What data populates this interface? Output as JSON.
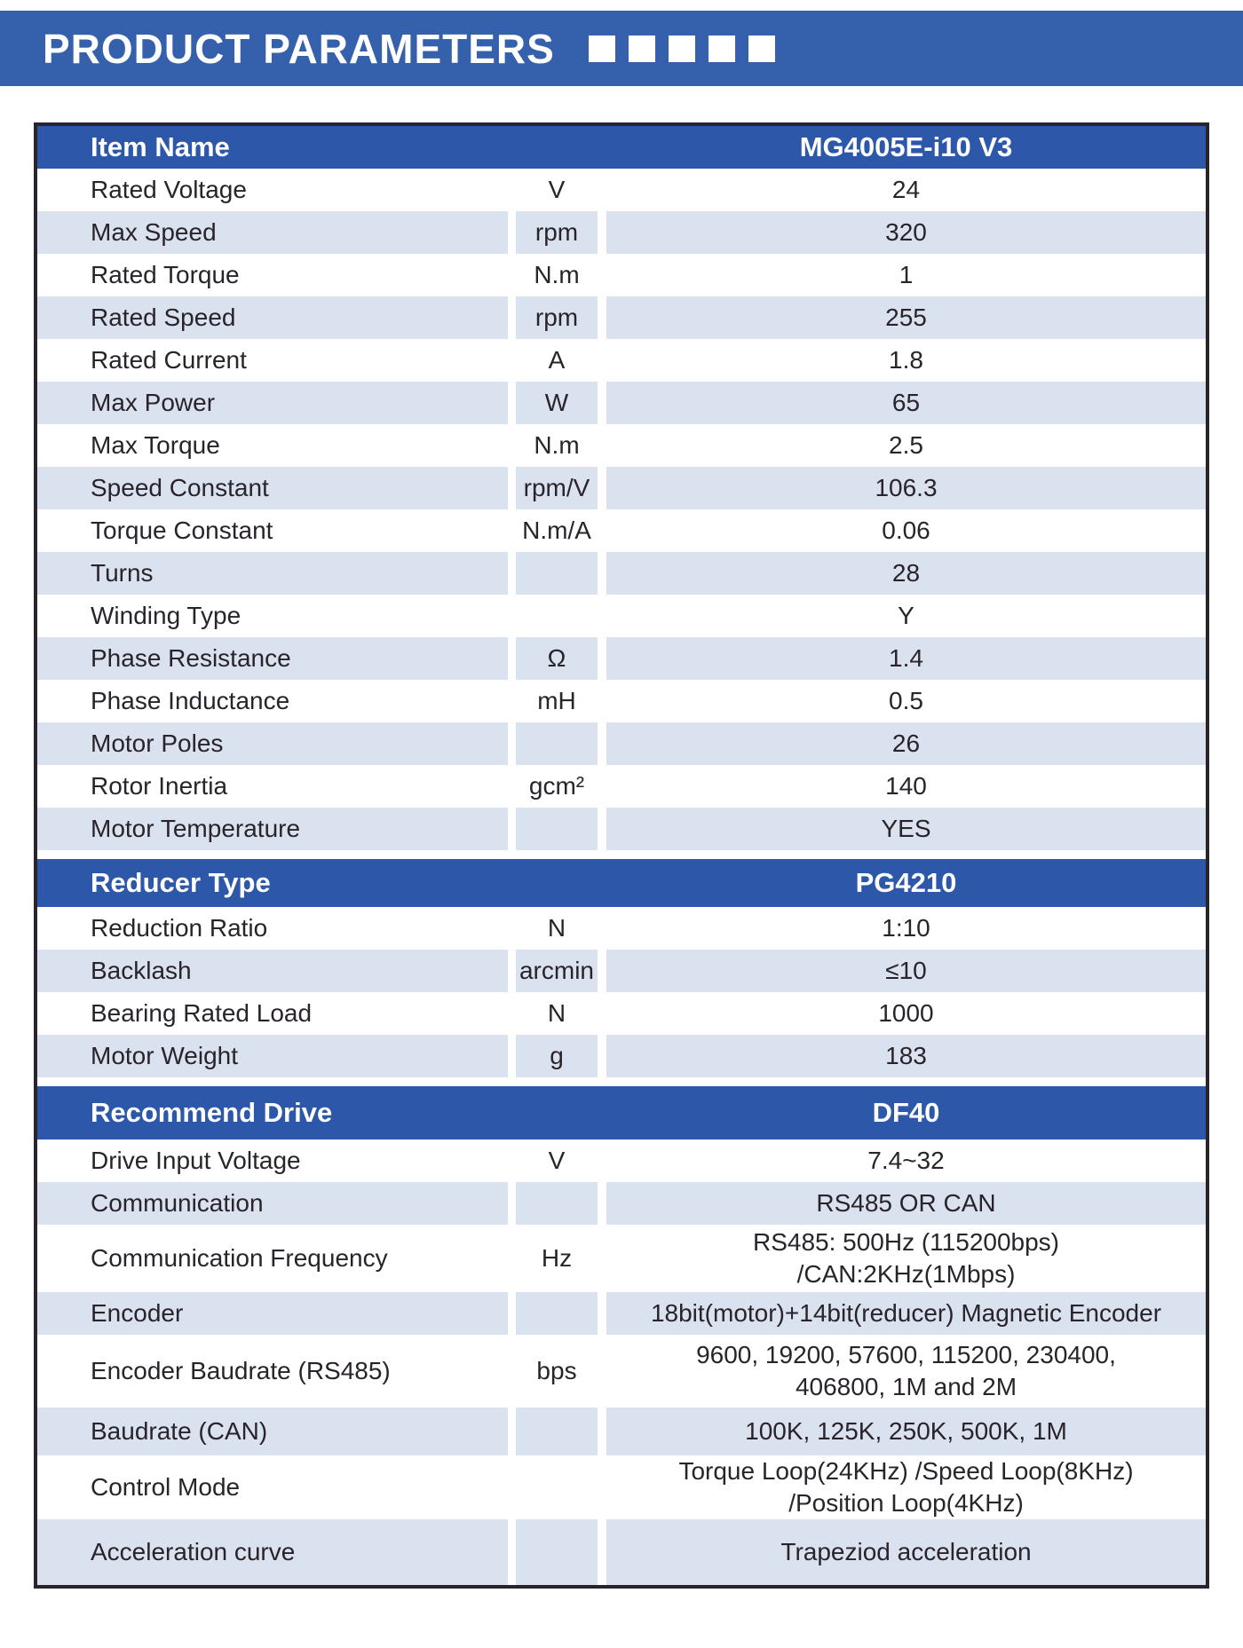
{
  "banner": {
    "title": "PRODUCT PARAMETERS",
    "decor_squares": 5
  },
  "colors": {
    "banner_blue": "#3560ac",
    "section_header_blue": "#2d57a9",
    "row_shade": "#dbe2ef",
    "text_dark": "#29242b",
    "table_border": "#29242b"
  },
  "table": {
    "sections": [
      {
        "header": {
          "label": "Item Name",
          "value": "MG4005E-i10 V3"
        },
        "rows": [
          {
            "label": "Rated Voltage",
            "unit": "V",
            "value": "24"
          },
          {
            "label": "Max Speed",
            "unit": "rpm",
            "value": "320"
          },
          {
            "label": "Rated Torque",
            "unit": "N.m",
            "value": "1"
          },
          {
            "label": "Rated Speed",
            "unit": "rpm",
            "value": "255"
          },
          {
            "label": "Rated Current",
            "unit": "A",
            "value": "1.8"
          },
          {
            "label": "Max Power",
            "unit": "W",
            "value": "65"
          },
          {
            "label": "Max Torque",
            "unit": "N.m",
            "value": "2.5"
          },
          {
            "label": "Speed Constant",
            "unit": "rpm/V",
            "value": "106.3"
          },
          {
            "label": "Torque Constant",
            "unit": "N.m/A",
            "value": "0.06"
          },
          {
            "label": "Turns",
            "unit": "",
            "value": "28"
          },
          {
            "label": "Winding Type",
            "unit": "",
            "value": "Y"
          },
          {
            "label": "Phase Resistance",
            "unit": "Ω",
            "value": "1.4"
          },
          {
            "label": "Phase Inductance",
            "unit": "mH",
            "value": "0.5"
          },
          {
            "label": "Motor Poles",
            "unit": "",
            "value": "26"
          },
          {
            "label": "Rotor Inertia",
            "unit": "gcm²",
            "value": "140"
          },
          {
            "label": "Motor Temperature",
            "unit": "",
            "value": "YES"
          }
        ]
      },
      {
        "header": {
          "label": "Reducer Type",
          "value": "PG4210"
        },
        "rows": [
          {
            "label": "Reduction Ratio",
            "unit": "N",
            "value": "1:10"
          },
          {
            "label": "Backlash",
            "unit": "arcmin",
            "value": "≤10"
          },
          {
            "label": "Bearing Rated Load",
            "unit": "N",
            "value": "1000"
          },
          {
            "label": "Motor Weight",
            "unit": "g",
            "value": "183"
          }
        ]
      },
      {
        "header": {
          "label": "Recommend Drive",
          "value": "DF40"
        },
        "rows": [
          {
            "label": "Drive Input Voltage",
            "unit": "V",
            "value": "7.4~32"
          },
          {
            "label": "Communication",
            "unit": "",
            "value": "RS485 OR CAN"
          },
          {
            "label": "Communication Frequency",
            "unit": "Hz",
            "value": [
              "RS485: 500Hz (115200bps)",
              "/CAN:2KHz(1Mbps)"
            ]
          },
          {
            "label": "Encoder",
            "unit": "",
            "value": "18bit(motor)+14bit(reducer) Magnetic Encoder"
          },
          {
            "label": "Encoder Baudrate (RS485)",
            "unit": "bps",
            "value": [
              "9600, 19200, 57600, 115200, 230400,",
              "406800, 1M and 2M"
            ]
          },
          {
            "label": "Baudrate (CAN)",
            "unit": "",
            "value": "100K,  125K,  250K,  500K,  1M"
          },
          {
            "label": "Control Mode",
            "unit": "",
            "value": [
              "Torque Loop(24KHz) /Speed Loop(8KHz)",
              "/Position Loop(4KHz)"
            ]
          },
          {
            "label": "Acceleration curve",
            "unit": "",
            "value": "Trapeziod acceleration"
          }
        ]
      }
    ]
  }
}
